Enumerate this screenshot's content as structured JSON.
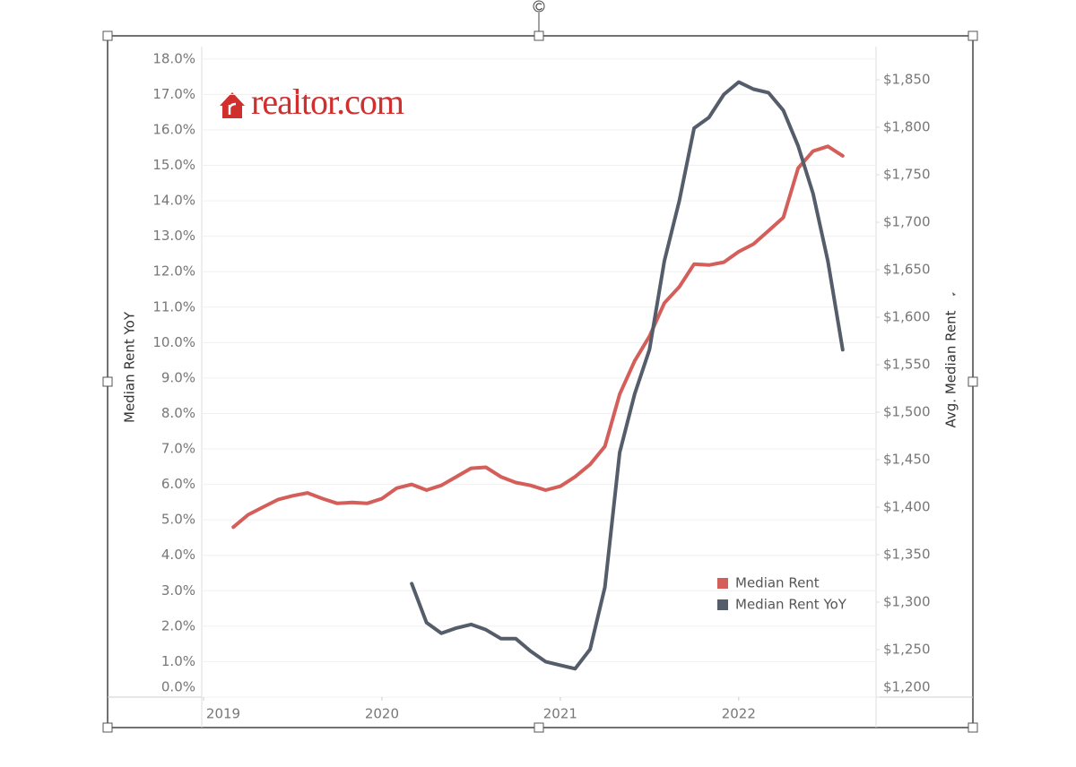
{
  "chart_data": {
    "type": "line",
    "logo": "realtor.com",
    "ylabel": "Median Rent YoY",
    "y2label": "Avg. Median Rent",
    "x": [
      2019.167,
      2019.25,
      2019.333,
      2019.417,
      2019.5,
      2019.583,
      2019.667,
      2019.75,
      2019.833,
      2019.917,
      2020,
      2020.083,
      2020.167,
      2020.25,
      2020.333,
      2020.417,
      2020.5,
      2020.583,
      2020.667,
      2020.75,
      2020.833,
      2020.917,
      2021,
      2021.083,
      2021.167,
      2021.25,
      2021.333,
      2021.417,
      2021.5,
      2021.583,
      2021.667,
      2021.75,
      2021.833,
      2021.917,
      2022,
      2022.083,
      2022.167,
      2022.25,
      2022.333,
      2022.417,
      2022.5,
      2022.583
    ],
    "series": [
      {
        "name": "Median Rent",
        "color": "#d45f5a",
        "axis": "y2",
        "values": [
          1379,
          1392,
          1400,
          1408,
          1412,
          1415,
          1409,
          1404,
          1405,
          1404,
          1409,
          1420,
          1424,
          1418,
          1423,
          1432,
          1441,
          1442,
          1432,
          1426,
          1423,
          1418,
          1422,
          1432,
          1445,
          1464,
          1519,
          1554,
          1580,
          1615,
          1632,
          1656,
          1655,
          1658,
          1669,
          1677,
          1691,
          1705,
          1757,
          1775,
          1780,
          1770
        ]
      },
      {
        "name": "Median Rent YoY",
        "color": "#555d6b",
        "values": [
          null,
          null,
          null,
          null,
          null,
          null,
          null,
          null,
          null,
          null,
          null,
          null,
          3.2,
          2.1,
          1.8,
          1.95,
          2.05,
          1.9,
          1.65,
          1.65,
          1.3,
          1.0,
          0.9,
          0.8,
          1.35,
          3.1,
          6.9,
          8.55,
          9.8,
          12.3,
          14.0,
          16.05,
          16.35,
          17.0,
          17.35,
          17.15,
          17.05,
          16.55,
          15.55,
          14.2,
          12.3,
          9.8
        ]
      }
    ],
    "xlim": [
      2018.99,
      2022.77
    ],
    "xticks": [
      2019,
      2020,
      2021,
      2022
    ],
    "ylim": [
      0,
      18.35
    ],
    "yticks": [
      {
        "value": 0,
        "label": "0.0%"
      },
      {
        "value": 1,
        "label": "1.0%"
      },
      {
        "value": 2,
        "label": "2.0%"
      },
      {
        "value": 3,
        "label": "3.0%"
      },
      {
        "value": 4,
        "label": "4.0%"
      },
      {
        "value": 5,
        "label": "5.0%"
      },
      {
        "value": 6,
        "label": "6.0%"
      },
      {
        "value": 7,
        "label": "7.0%"
      },
      {
        "value": 8,
        "label": "8.0%"
      },
      {
        "value": 9,
        "label": "9.0%"
      },
      {
        "value": 10,
        "label": "10.0%"
      },
      {
        "value": 11,
        "label": "11.0%"
      },
      {
        "value": 12,
        "label": "12.0%"
      },
      {
        "value": 13,
        "label": "13.0%"
      },
      {
        "value": 14,
        "label": "14.0%"
      },
      {
        "value": 15,
        "label": "15.0%"
      },
      {
        "value": 16,
        "label": "16.0%"
      },
      {
        "value": 17,
        "label": "17.0%"
      },
      {
        "value": 18,
        "label": "18.0%"
      }
    ],
    "y2lim": [
      1200,
      1885
    ],
    "y2ticks": [
      {
        "value": 1200,
        "label": "$1,200"
      },
      {
        "value": 1250,
        "label": "$1,250"
      },
      {
        "value": 1300,
        "label": "$1,300"
      },
      {
        "value": 1350,
        "label": "$1,350"
      },
      {
        "value": 1400,
        "label": "$1,400"
      },
      {
        "value": 1450,
        "label": "$1,450"
      },
      {
        "value": 1500,
        "label": "$1,500"
      },
      {
        "value": 1550,
        "label": "$1,550"
      },
      {
        "value": 1600,
        "label": "$1,600"
      },
      {
        "value": 1650,
        "label": "$1,650"
      },
      {
        "value": 1700,
        "label": "$1,700"
      },
      {
        "value": 1750,
        "label": "$1,750"
      },
      {
        "value": 1800,
        "label": "$1,800"
      },
      {
        "value": 1850,
        "label": "$1,850"
      }
    ],
    "grid": true,
    "legend": "bottom right"
  }
}
